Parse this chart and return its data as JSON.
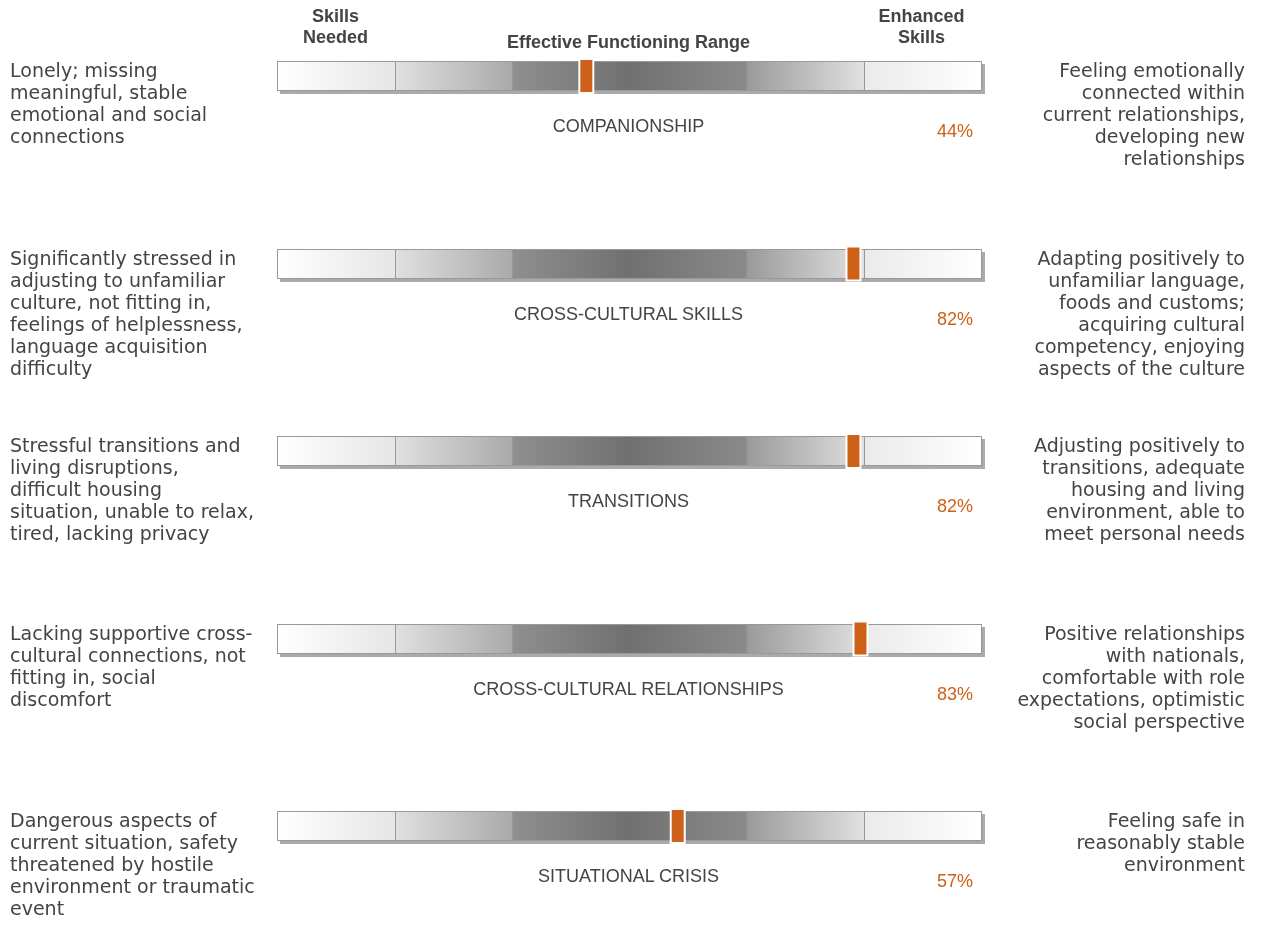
{
  "chart_data": {
    "type": "other",
    "categories": [
      "COMPANIONSHIP",
      "CROSS-CULTURAL SKILLS",
      "TRANSITIONS",
      "CROSS-CULTURAL RELATIONSHIPS",
      "SITUATIONAL CRISIS"
    ],
    "values": [
      44,
      82,
      82,
      83,
      57
    ],
    "value_labels": [
      "44%",
      "82%",
      "82%",
      "83%",
      "57%"
    ],
    "color": "#cd6118",
    "annotations": [
      "Skills Needed",
      "Effective Functioning Range",
      "Enhanced Skills",
      "Lonely; missing meaningful, stable emotional and social connections",
      "Feeling emotionally connected within current relationships, developing new relationships",
      "Significantly stressed in adjusting to unfamiliar culture, not fitting in, feelings of helplessness, language acquisition difficulty",
      "Adapting positively to unfamiliar language, foods and customs; acquiring cultural competency, enjoying aspects of the culture",
      "Stressful transitions and living disruptions, difficult housing situation, unable to relax, tired, lacking privacy",
      "Adjusting positively  to transitions, adequate housing and living environment, able to meet personal needs",
      "Lacking supportive cross-cultural connections, not fitting in, social discomfort",
      "Positive relationships with nationals, comfortable with role expectations, optimistic social perspective",
      "Dangerous aspects of current situation, safety threatened by hostile environment or traumatic event",
      "Feeling safe in reasonably stable environment"
    ]
  }
}
